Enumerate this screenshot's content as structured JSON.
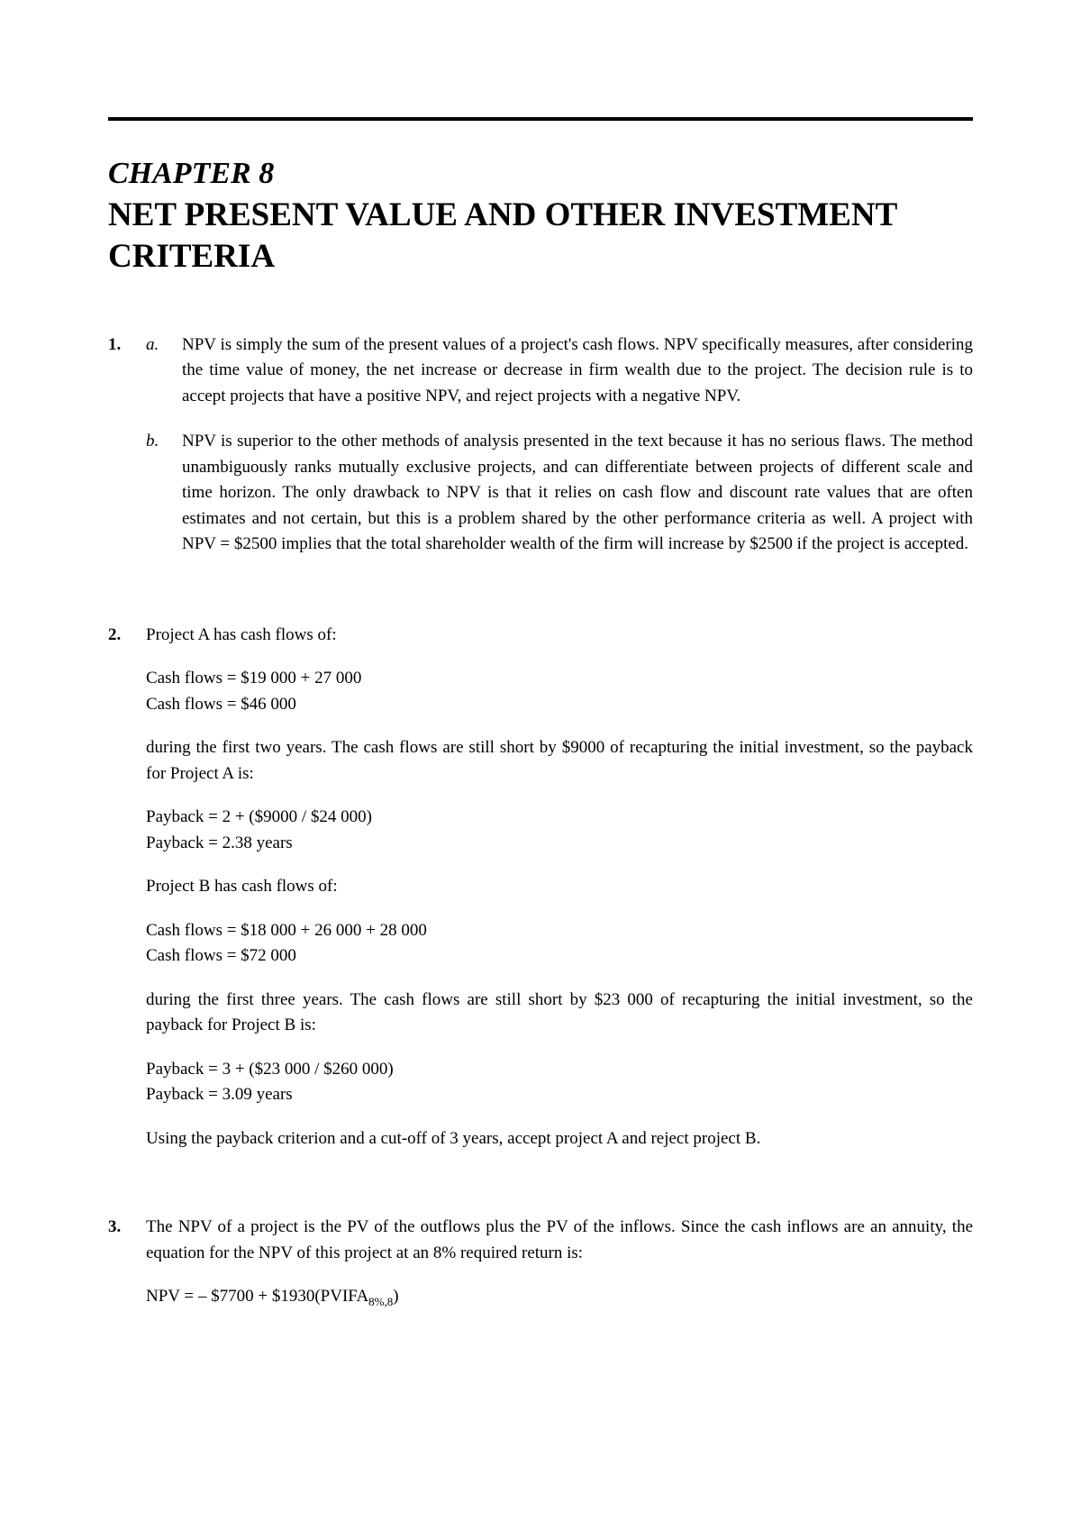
{
  "chapter": {
    "label": "CHAPTER 8",
    "title": "NET PRESENT VALUE AND OTHER INVESTMENT CRITERIA"
  },
  "items": [
    {
      "number": "1.",
      "subitems": [
        {
          "letter": "a.",
          "text": "NPV is simply the sum of the present values of a project's cash flows. NPV specifically measures, after considering the time value of money, the net increase or decrease in firm wealth due to the project. The decision rule is to accept projects that have a positive NPV, and reject projects with a negative NPV."
        },
        {
          "letter": "b.",
          "text": "NPV is superior to the other methods of analysis presented in the text because it has no serious flaws. The method unambiguously ranks mutually exclusive projects, and can differentiate between projects of different scale and time horizon. The only drawback to NPV is that it relies on cash flow and discount rate values that are often estimates and not certain, but this is a problem shared by the other performance criteria as well. A project with NPV = $2500 implies that the total shareholder wealth of the firm will increase by $2500 if the project is accepted."
        }
      ]
    },
    {
      "number": "2.",
      "intro": "Project A has cash flows of:",
      "calc1": {
        "line1": "Cash flows = $19 000 + 27 000",
        "line2": "Cash flows = $46 000"
      },
      "para1": "during the first two years. The cash flows are still short by $9000 of recapturing the initial investment, so the payback for Project A is:",
      "calc2": {
        "line1": "Payback = 2 + ($9000 / $24 000)",
        "line2": "Payback = 2.38 years"
      },
      "para2": "Project B has cash flows of:",
      "calc3": {
        "line1": "Cash flows = $18 000 + 26 000 + 28 000",
        "line2": "Cash flows = $72 000"
      },
      "para3": "during the first three years. The cash flows are still short by $23 000 of recapturing the initial investment, so the payback for Project B is:",
      "calc4": {
        "line1": "Payback = 3 + ($23 000 / $260 000)",
        "line2": "Payback = 3.09 years"
      },
      "para4": "Using the payback criterion and a cut-off of 3 years, accept project A and reject project B."
    },
    {
      "number": "3.",
      "intro": "The NPV of a project is the PV of the outflows plus the PV of the inflows. Since the cash inflows are an annuity, the equation for the NPV of this project at an 8% required return is:",
      "formula_prefix": "NPV = – $7700 + $1930(PVIFA",
      "formula_sub": "8%,8",
      "formula_suffix": ")"
    }
  ]
}
